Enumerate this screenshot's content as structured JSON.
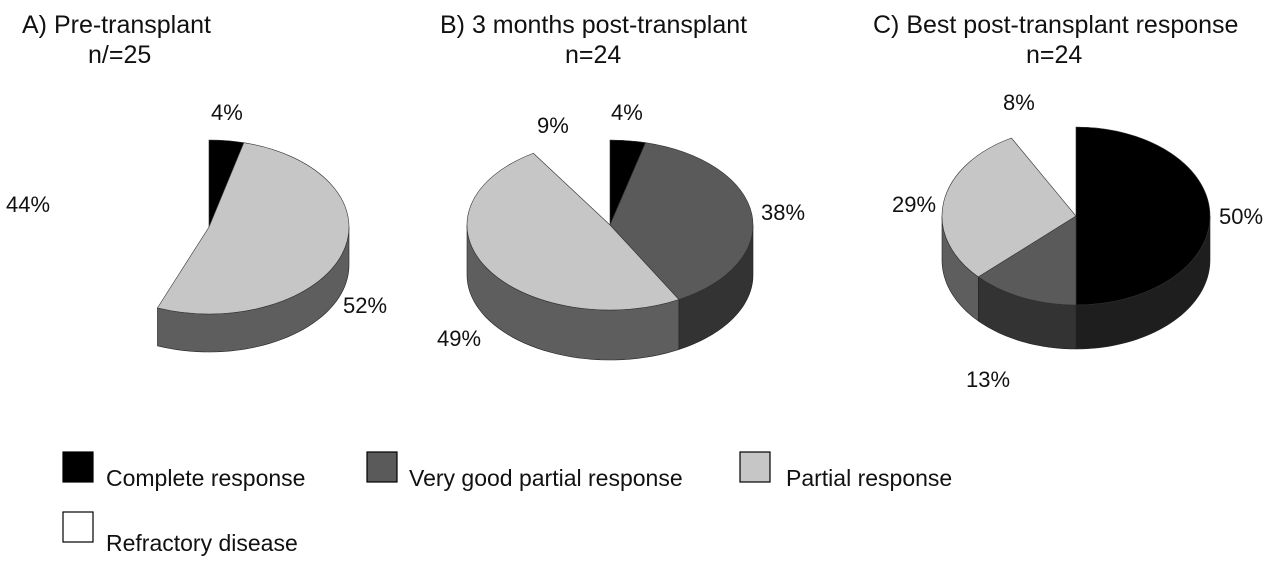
{
  "chart_data": [
    {
      "type": "pie",
      "title": "A) Pre-transplant",
      "subtitle": "n/=25",
      "categories": [
        "Complete response",
        "Partial response",
        "Refractory disease"
      ],
      "values": [
        4,
        52,
        44
      ],
      "labels": [
        "4%",
        "52%",
        "44%"
      ]
    },
    {
      "type": "pie",
      "title": "B) 3 months post-transplant",
      "subtitle": "n=24",
      "categories": [
        "Complete response",
        "Very good partial response",
        "Partial response",
        "Refractory disease"
      ],
      "values": [
        4,
        38,
        49,
        9
      ],
      "labels": [
        "4%",
        "38%",
        "49%",
        "9%"
      ]
    },
    {
      "type": "pie",
      "title": "C) Best post-transplant response",
      "subtitle": "n=24",
      "categories": [
        "Complete response",
        "Very good partial response",
        "Partial response",
        "Refractory disease"
      ],
      "values": [
        50,
        13,
        29,
        8
      ],
      "labels": [
        "50%",
        "13%",
        "29%",
        "8%"
      ]
    }
  ],
  "legend": {
    "placement": "bottom",
    "items": [
      {
        "label": "Complete response",
        "color": "#000000"
      },
      {
        "label": "Very good partial response",
        "color": "#5a5a5a"
      },
      {
        "label": "Partial response",
        "color": "#c6c6c6"
      },
      {
        "label": "Refractory disease",
        "color": "#ffffff"
      }
    ]
  },
  "colors": {
    "Complete response": "#000000",
    "Very good partial response": "#5a5a5a",
    "Partial response": "#c6c6c6",
    "Refractory disease": "#ffffff"
  }
}
